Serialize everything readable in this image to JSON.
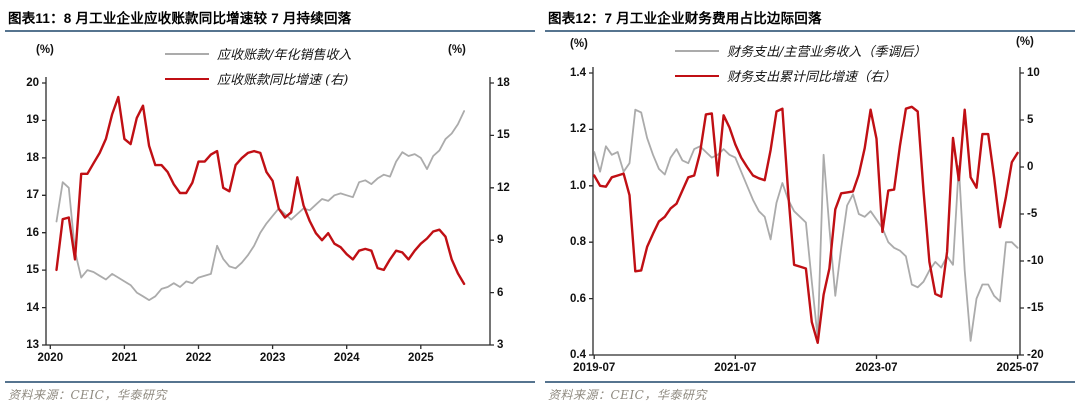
{
  "page": {
    "background": "#ffffff"
  },
  "colors": {
    "series_red": "#c00f14",
    "series_gray": "#ababab",
    "title_rule": "#56748f",
    "footer_text": "#8f8a80",
    "axis": "#2b2b2b"
  },
  "chart_data": [
    {
      "type": "line",
      "figure_label": "图表11：",
      "title": "8 月工业企业应收账款同比增速较 7 月持续回落",
      "source": "资料来源：CEIC，华泰研究",
      "left_unit": "(%)",
      "right_unit": "(%)",
      "legend": [
        {
          "label": "应收账款/年化销售收入",
          "color": "#ababab",
          "thickness": 2
        },
        {
          "label": "应收账款同比增速 (右)",
          "color": "#c00f14",
          "thickness": 2.6
        }
      ],
      "x_axis": {
        "first": 1,
        "ticks": [
          {
            "pos": 0,
            "label": "2020"
          },
          {
            "pos": 12,
            "label": "2021"
          },
          {
            "pos": 24,
            "label": "2022"
          },
          {
            "pos": 36,
            "label": "2023"
          },
          {
            "pos": 48,
            "label": "2024"
          },
          {
            "pos": 60,
            "label": "2025"
          }
        ]
      },
      "left_axis": {
        "min": 13,
        "max": 20,
        "ticks": [
          {
            "v": 20,
            "label": "20"
          },
          {
            "v": 19,
            "label": "19"
          },
          {
            "v": 18,
            "label": "18"
          },
          {
            "v": 17,
            "label": "17"
          },
          {
            "v": 16,
            "label": "16"
          },
          {
            "v": 15,
            "label": "15"
          },
          {
            "v": 14,
            "label": "14"
          },
          {
            "v": 13,
            "label": "13"
          }
        ]
      },
      "right_axis": {
        "min": 3,
        "max": 18,
        "ticks": [
          {
            "v": 18,
            "label": "18"
          },
          {
            "v": 15,
            "label": "15"
          },
          {
            "v": 12,
            "label": "12"
          },
          {
            "v": 9,
            "label": "9"
          },
          {
            "v": 6,
            "label": "6"
          },
          {
            "v": 3,
            "label": "3"
          }
        ]
      },
      "series": [
        {
          "name": "应收账款/年化销售收入",
          "axis": "left",
          "color": "#ababab",
          "width": 1.8,
          "values": [
            16.3,
            17.35,
            17.2,
            15.5,
            14.8,
            15.0,
            14.95,
            14.85,
            14.75,
            14.9,
            14.8,
            14.7,
            14.6,
            14.4,
            14.3,
            14.2,
            14.3,
            14.5,
            14.55,
            14.65,
            14.55,
            14.7,
            14.65,
            14.8,
            14.85,
            14.9,
            15.65,
            15.3,
            15.1,
            15.05,
            15.2,
            15.4,
            15.65,
            16.0,
            16.25,
            16.45,
            16.65,
            16.5,
            16.35,
            16.5,
            16.65,
            16.6,
            16.75,
            16.9,
            16.85,
            17.0,
            17.05,
            17.0,
            16.95,
            17.35,
            17.4,
            17.3,
            17.45,
            17.55,
            17.5,
            17.9,
            18.15,
            18.05,
            18.1,
            18.0,
            17.7,
            18.05,
            18.2,
            18.5,
            18.65,
            18.9,
            19.25
          ]
        },
        {
          "name": "应收账款同比增速",
          "axis": "right",
          "color": "#c00f14",
          "width": 2.4,
          "values": [
            7.3,
            10.2,
            10.3,
            7.9,
            12.8,
            12.8,
            13.4,
            14.0,
            14.8,
            16.2,
            17.2,
            14.8,
            14.5,
            16.0,
            16.7,
            14.4,
            13.3,
            13.3,
            12.9,
            12.2,
            11.7,
            11.7,
            12.3,
            13.5,
            13.5,
            13.9,
            14.1,
            12.0,
            11.8,
            13.3,
            13.7,
            14.0,
            14.1,
            14.0,
            12.9,
            12.4,
            10.8,
            10.3,
            10.6,
            12.6,
            11.0,
            10.1,
            9.4,
            9.0,
            9.4,
            8.8,
            8.6,
            8.2,
            7.9,
            8.4,
            8.5,
            8.4,
            7.4,
            7.3,
            7.9,
            8.4,
            8.3,
            7.9,
            8.4,
            8.8,
            9.1,
            9.5,
            9.6,
            9.2,
            7.9,
            7.1,
            6.5
          ]
        }
      ]
    },
    {
      "type": "line",
      "figure_label": "图表12：",
      "title": "7 月工业企业财务费用占比边际回落",
      "source": "资料来源：CEIC，华泰研究",
      "left_unit": "(%)",
      "right_unit": "(%)",
      "legend": [
        {
          "label": "财务支出/主营业务收入（季调后）",
          "color": "#ababab",
          "thickness": 2
        },
        {
          "label": "财务支出累计同比增速（右）",
          "color": "#c00f14",
          "thickness": 2.6
        }
      ],
      "x_axis": {
        "first": 0,
        "ticks": [
          {
            "pos": 0,
            "label": "2019-07"
          },
          {
            "pos": 24,
            "label": "2021-07"
          },
          {
            "pos": 48,
            "label": "2023-07"
          },
          {
            "pos": 72,
            "label": "2025-07"
          }
        ]
      },
      "left_axis": {
        "min": 0.4,
        "max": 1.4,
        "ticks": [
          {
            "v": 1.4,
            "label": "1.4"
          },
          {
            "v": 1.2,
            "label": "1.2"
          },
          {
            "v": 1.0,
            "label": "1.0"
          },
          {
            "v": 0.8,
            "label": "0.8"
          },
          {
            "v": 0.6,
            "label": "0.6"
          },
          {
            "v": 0.4,
            "label": "0.4"
          }
        ]
      },
      "right_axis": {
        "min": -20,
        "max": 10,
        "ticks": [
          {
            "v": 10,
            "label": "10"
          },
          {
            "v": 5,
            "label": "5"
          },
          {
            "v": 0,
            "label": "0"
          },
          {
            "v": -5,
            "label": "-5"
          },
          {
            "v": -10,
            "label": "-10"
          },
          {
            "v": -15,
            "label": "-15"
          },
          {
            "v": -20,
            "label": "-20"
          }
        ]
      },
      "series": [
        {
          "name": "财务支出/主营业务收入（季调后）",
          "axis": "left",
          "color": "#ababab",
          "width": 1.8,
          "values": [
            1.12,
            1.05,
            1.14,
            1.11,
            1.12,
            1.05,
            1.08,
            1.27,
            1.26,
            1.17,
            1.11,
            1.06,
            1.04,
            1.1,
            1.13,
            1.09,
            1.08,
            1.13,
            1.14,
            1.12,
            1.1,
            1.11,
            1.13,
            1.11,
            1.1,
            1.05,
            1.0,
            0.95,
            0.91,
            0.89,
            0.81,
            0.94,
            1.01,
            0.95,
            0.91,
            0.89,
            0.87,
            0.66,
            0.46,
            1.11,
            0.85,
            0.61,
            0.78,
            0.93,
            0.97,
            0.9,
            0.89,
            0.91,
            0.88,
            0.85,
            0.8,
            0.78,
            0.77,
            0.75,
            0.65,
            0.64,
            0.66,
            0.7,
            0.73,
            0.71,
            0.75,
            0.72,
            1.07,
            0.7,
            0.45,
            0.6,
            0.65,
            0.65,
            0.61,
            0.59,
            0.8,
            0.8,
            0.78
          ]
        },
        {
          "name": "财务支出累计同比增速",
          "axis": "right",
          "color": "#c00f14",
          "width": 2.4,
          "values": [
            -0.9,
            -2.0,
            -2.1,
            -1.1,
            -0.9,
            -0.7,
            -3.0,
            -11.1,
            -11.0,
            -8.5,
            -7.1,
            -5.8,
            -5.3,
            -4.4,
            -3.9,
            -2.5,
            -1.1,
            -0.9,
            1.5,
            5.6,
            5.7,
            -0.9,
            5.5,
            4.2,
            2.4,
            1.0,
            0.0,
            -0.9,
            -1.2,
            -1.4,
            1.8,
            5.9,
            6.2,
            -2.9,
            -10.4,
            -10.6,
            -10.8,
            -16.5,
            -18.7,
            -13.6,
            -10.8,
            -4.5,
            -2.8,
            -2.7,
            -2.6,
            -0.8,
            2.0,
            6.1,
            3.0,
            -6.9,
            -2.5,
            -2.4,
            2.3,
            6.2,
            6.4,
            5.9,
            -2.5,
            -10.1,
            -13.5,
            -13.8,
            -9.0,
            3.1,
            -1.4,
            6.1,
            -1.1,
            -2.2,
            3.5,
            3.5,
            -1.1,
            -6.4,
            -3.2,
            0.5,
            1.5
          ]
        }
      ]
    }
  ]
}
